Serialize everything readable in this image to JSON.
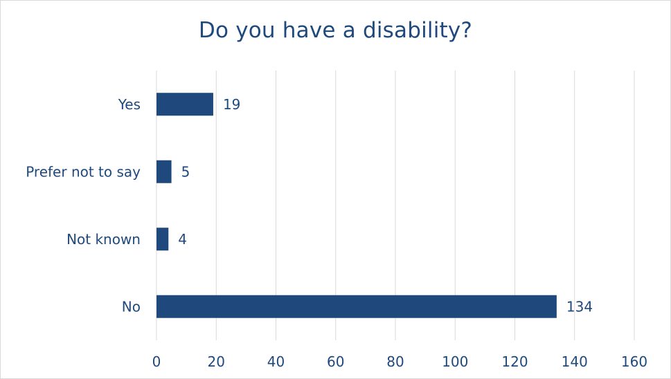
{
  "chart_data": {
    "type": "bar",
    "orientation": "horizontal",
    "title": "Do you have a disability?",
    "categories": [
      "Yes",
      "Prefer not to say",
      "Not known",
      "No"
    ],
    "values": [
      19,
      5,
      4,
      134
    ],
    "xlim": [
      0,
      160
    ],
    "x_ticks": [
      "0",
      "20",
      "40",
      "60",
      "80",
      "100",
      "120",
      "140",
      "160"
    ],
    "xlabel": "",
    "ylabel": "",
    "grid": "vertical",
    "legend": "none",
    "data_labels": true,
    "bar_color": "#1f497d",
    "text_color": "#1f497d",
    "grid_color": "#d9d9d9"
  }
}
